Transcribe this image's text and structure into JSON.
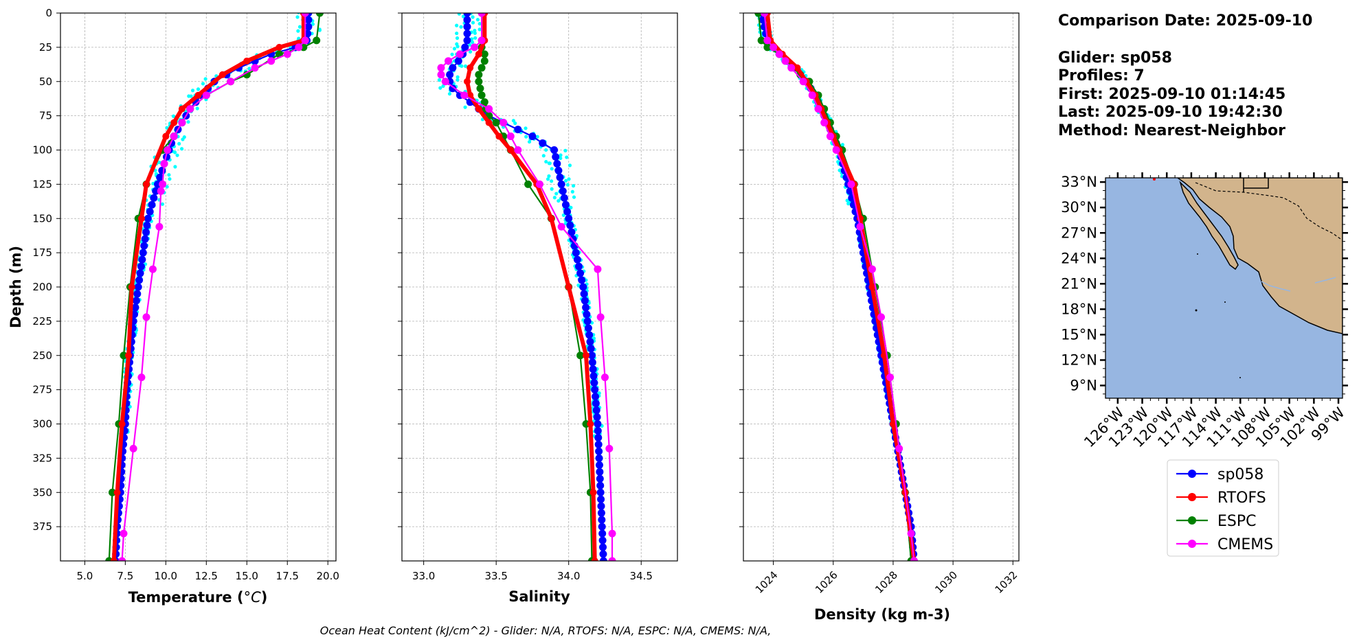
{
  "chart_data": {
    "type": "line",
    "footer": "Ocean Heat Content (kJ/cm^2) - Glider: N/A,  RTOFS: N/A,  ESPC: N/A,  CMEMS: N/A,",
    "info": {
      "date": "Comparison Date: 2025-09-10",
      "glider": "Glider: sp058",
      "profiles": "Profiles: 7",
      "first": "First: 2025-09-10 01:14:45",
      "last": "Last: 2025-09-10 19:42:30",
      "method": "Method: Nearest-Neighbor"
    },
    "colors": {
      "sp058": "#0000ff",
      "RTOFS": "#ff0000",
      "ESPC": "#008000",
      "CMEMS": "#ff00ff",
      "raw": "#00ffff",
      "ocean": "#97b6e1",
      "land": "#d2b48c"
    },
    "legend": {
      "placement": "below-map",
      "entries": [
        "sp058",
        "RTOFS",
        "ESPC",
        "CMEMS"
      ]
    },
    "depth_axis": {
      "label": "Depth (m)",
      "ylim": [
        400,
        0
      ],
      "ticks": [
        0,
        25,
        50,
        75,
        100,
        125,
        150,
        175,
        200,
        225,
        250,
        275,
        300,
        325,
        350,
        375
      ]
    },
    "panels": [
      {
        "xlabel": "Temperature (°C)",
        "xlim": [
          3.5,
          20.5
        ],
        "xticks": [
          5.0,
          7.5,
          10.0,
          12.5,
          15.0,
          17.5,
          20.0
        ],
        "xtick_labels": [
          "5.0",
          "7.5",
          "10.0",
          "12.5",
          "15.0",
          "17.5",
          "20.0"
        ],
        "grid": true,
        "series": [
          {
            "name": "sp058",
            "depth": [
              0,
              10,
              20,
              25,
              30,
              40,
              50,
              60,
              70,
              80,
              90,
              100,
              110,
              125,
              150,
              175,
              200,
              225,
              250,
              275,
              300,
              325,
              350,
              375,
              400
            ],
            "values": [
              18.8,
              18.8,
              18.7,
              18.0,
              16.5,
              14.5,
              13.0,
              12.2,
              11.5,
              11.0,
              10.5,
              10.2,
              9.9,
              9.5,
              8.9,
              8.6,
              8.3,
              8.0,
              7.8,
              7.6,
              7.5,
              7.3,
              7.2,
              7.0,
              6.9
            ]
          },
          {
            "name": "RTOFS",
            "depth": [
              0,
              20,
              25,
              35,
              45,
              60,
              70,
              80,
              90,
              125,
              150,
              200,
              250,
              300,
              350,
              400
            ],
            "values": [
              18.5,
              18.5,
              17.0,
              15.0,
              13.5,
              12.0,
              11.0,
              10.5,
              10.0,
              8.8,
              8.5,
              7.9,
              7.7,
              7.3,
              7.0,
              6.8
            ]
          },
          {
            "name": "ESPC",
            "depth": [
              0,
              20,
              25,
              30,
              45,
              50,
              60,
              70,
              80,
              90,
              100,
              125,
              150,
              200,
              250,
              300,
              350,
              400
            ],
            "values": [
              19.5,
              19.3,
              18.5,
              17.0,
              15.0,
              14.0,
              12.5,
              11.5,
              11.0,
              10.5,
              9.8,
              8.8,
              8.3,
              7.8,
              7.4,
              7.1,
              6.7,
              6.5
            ]
          },
          {
            "name": "CMEMS",
            "depth": [
              0,
              20,
              25,
              30,
              35,
              40,
              50,
              60,
              70,
              80,
              90,
              100,
              110,
              125,
              130,
              156,
              187,
              222,
              266,
              318,
              380,
              400
            ],
            "values": [
              18.6,
              18.6,
              18.2,
              17.5,
              16.5,
              15.5,
              14.0,
              12.5,
              11.5,
              11.0,
              10.5,
              10.1,
              9.9,
              9.8,
              9.7,
              9.6,
              9.2,
              8.8,
              8.5,
              8.0,
              7.4,
              7.3
            ]
          }
        ]
      },
      {
        "xlabel": "Salinity",
        "xlim": [
          32.85,
          34.75
        ],
        "xticks": [
          33.0,
          33.5,
          34.0,
          34.5
        ],
        "xtick_labels": [
          "33.0",
          "33.5",
          "34.0",
          "34.5"
        ],
        "grid": true,
        "series": [
          {
            "name": "sp058",
            "depth": [
              0,
              10,
              20,
              30,
              35,
              40,
              45,
              50,
              55,
              60,
              65,
              70,
              75,
              80,
              85,
              90,
              95,
              100,
              125,
              150,
              175,
              200,
              225,
              250,
              275,
              300,
              325,
              350,
              375,
              400
            ],
            "values": [
              33.3,
              33.3,
              33.3,
              33.27,
              33.24,
              33.2,
              33.18,
              33.18,
              33.2,
              33.25,
              33.32,
              33.38,
              33.45,
              33.55,
              33.65,
              33.75,
              33.82,
              33.9,
              33.95,
              34.0,
              34.05,
              34.1,
              34.13,
              34.16,
              34.18,
              34.2,
              34.21,
              34.22,
              34.23,
              34.24
            ]
          },
          {
            "name": "RTOFS",
            "depth": [
              0,
              20,
              30,
              40,
              50,
              60,
              70,
              80,
              90,
              100,
              125,
              150,
              200,
              250,
              300,
              350,
              400
            ],
            "values": [
              33.42,
              33.42,
              33.38,
              33.32,
              33.3,
              33.32,
              33.38,
              33.45,
              33.52,
              33.6,
              33.78,
              33.88,
              34.0,
              34.12,
              34.15,
              34.17,
              34.18
            ]
          },
          {
            "name": "ESPC",
            "depth": [
              0,
              20,
              25,
              30,
              35,
              40,
              45,
              50,
              55,
              60,
              65,
              70,
              75,
              80,
              90,
              100,
              125,
              150,
              200,
              250,
              300,
              350,
              400
            ],
            "values": [
              33.4,
              33.4,
              33.4,
              33.42,
              33.42,
              33.4,
              33.38,
              33.38,
              33.39,
              33.4,
              33.42,
              33.43,
              33.45,
              33.5,
              33.55,
              33.6,
              33.72,
              33.88,
              34.0,
              34.08,
              34.12,
              34.15,
              34.16
            ]
          },
          {
            "name": "CMEMS",
            "depth": [
              0,
              20,
              25,
              30,
              35,
              40,
              45,
              50,
              60,
              70,
              80,
              90,
              100,
              125,
              156,
              187,
              222,
              266,
              318,
              380,
              400
            ],
            "values": [
              33.4,
              33.4,
              33.35,
              33.25,
              33.17,
              33.12,
              33.12,
              33.15,
              33.28,
              33.45,
              33.55,
              33.6,
              33.65,
              33.8,
              33.95,
              34.2,
              34.22,
              34.25,
              34.28,
              34.3,
              34.3
            ]
          }
        ]
      },
      {
        "xlabel": "Density (kg m-3)",
        "xlim": [
          1023.0,
          1032.2
        ],
        "xticks": [
          1024,
          1026,
          1028,
          1030,
          1032
        ],
        "xtick_labels": [
          "1024",
          "1026",
          "1028",
          "1030",
          "1032"
        ],
        "grid": true,
        "series": [
          {
            "name": "sp058",
            "depth": [
              0,
              20,
              30,
              40,
              50,
              60,
              70,
              80,
              90,
              100,
              125,
              150,
              175,
              200,
              225,
              250,
              275,
              300,
              325,
              350,
              375,
              400
            ],
            "values": [
              1023.6,
              1023.8,
              1024.2,
              1024.7,
              1025.1,
              1025.4,
              1025.6,
              1025.8,
              1026.0,
              1026.2,
              1026.5,
              1026.8,
              1027.0,
              1027.2,
              1027.4,
              1027.6,
              1027.8,
              1028.0,
              1028.2,
              1028.4,
              1028.6,
              1028.7
            ]
          },
          {
            "name": "RTOFS",
            "depth": [
              0,
              20,
              30,
              40,
              50,
              60,
              70,
              80,
              90,
              100,
              125,
              150,
              200,
              250,
              300,
              350,
              400
            ],
            "values": [
              1023.8,
              1023.9,
              1024.3,
              1024.8,
              1025.1,
              1025.4,
              1025.6,
              1025.8,
              1026.0,
              1026.2,
              1026.7,
              1026.9,
              1027.3,
              1027.7,
              1028.0,
              1028.4,
              1028.7
            ]
          },
          {
            "name": "ESPC",
            "depth": [
              0,
              20,
              25,
              30,
              45,
              50,
              60,
              70,
              80,
              90,
              100,
              125,
              150,
              200,
              250,
              300,
              350,
              400
            ],
            "values": [
              1023.5,
              1023.6,
              1023.8,
              1024.2,
              1024.9,
              1025.2,
              1025.5,
              1025.7,
              1025.9,
              1026.1,
              1026.3,
              1026.7,
              1027.0,
              1027.4,
              1027.8,
              1028.1,
              1028.4,
              1028.6
            ]
          },
          {
            "name": "CMEMS",
            "depth": [
              0,
              20,
              25,
              30,
              35,
              40,
              50,
              60,
              70,
              80,
              90,
              100,
              125,
              156,
              187,
              222,
              266,
              318,
              380,
              400
            ],
            "values": [
              1023.7,
              1023.8,
              1024.0,
              1024.2,
              1024.4,
              1024.6,
              1025.0,
              1025.3,
              1025.5,
              1025.7,
              1025.9,
              1026.1,
              1026.6,
              1026.9,
              1027.3,
              1027.6,
              1027.9,
              1028.2,
              1028.6,
              1028.7
            ]
          }
        ]
      }
    ],
    "map": {
      "lat_ticks": [
        "33°N",
        "30°N",
        "27°N",
        "24°N",
        "21°N",
        "18°N",
        "15°N",
        "12°N",
        "9°N"
      ],
      "lon_ticks": [
        "126°W",
        "123°W",
        "120°W",
        "117°W",
        "114°W",
        "111°W",
        "108°W",
        "105°W",
        "102°W",
        "99°W"
      ],
      "lat_range": [
        7.5,
        33.5
      ],
      "lon_range": [
        127.5,
        98.5
      ]
    }
  }
}
